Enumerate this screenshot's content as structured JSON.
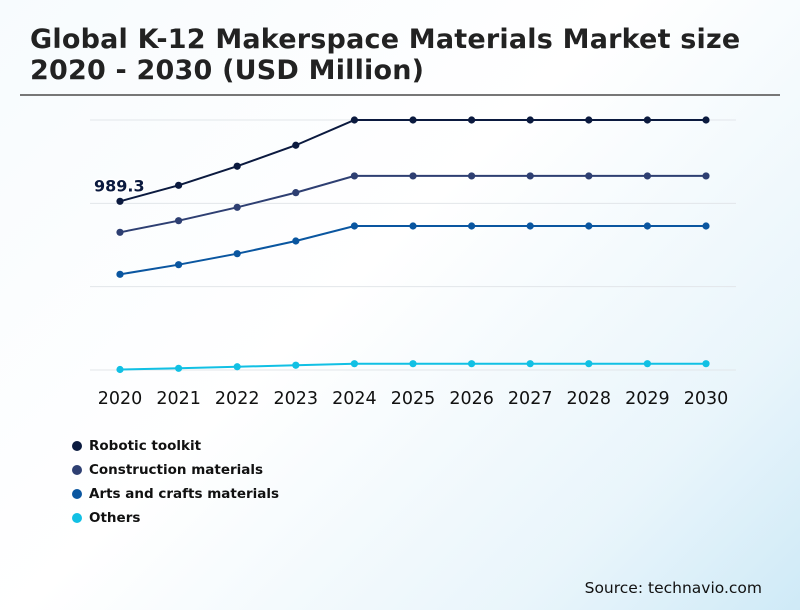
{
  "title": "Global K-12 Makerspace Materials Market size 2020 - 2030 (USD Million)",
  "source": "Source: technavio.com",
  "chart_data": {
    "type": "line",
    "title": "Global K-12 Makerspace Materials Market size 2020 - 2030 (USD Million)",
    "xlabel": "",
    "ylabel": "",
    "x": [
      "2020",
      "2021",
      "2022",
      "2023",
      "2024",
      "2025",
      "2026",
      "2027",
      "2028",
      "2029",
      "2030"
    ],
    "ylim": [
      0,
      1466
    ],
    "grid": true,
    "legend_position": "bottom-left",
    "series": [
      {
        "name": "Robotic toolkit",
        "color": "#0b1a3f",
        "values": [
          989.3,
          1083,
          1195,
          1318,
          1466,
          1466,
          1466,
          1466,
          1466,
          1466,
          1466
        ]
      },
      {
        "name": "Construction materials",
        "color": "#2e3f72",
        "values": [
          807.5,
          875.5,
          954,
          1040,
          1138,
          1138,
          1138,
          1138,
          1138,
          1138,
          1138
        ]
      },
      {
        "name": "Arts and crafts materials",
        "color": "#0a56a0",
        "values": [
          561,
          617.5,
          682,
          756.5,
          844.5,
          844.5,
          844.5,
          844.5,
          844.5,
          844.5,
          844.5
        ]
      },
      {
        "name": "Others",
        "color": "#11c0e4",
        "values": [
          3,
          10,
          19,
          28,
          37,
          37,
          37,
          37,
          37,
          37,
          37
        ]
      }
    ],
    "annotations": [
      {
        "series": "Robotic toolkit",
        "x": "2020",
        "text": "989.3"
      }
    ]
  }
}
